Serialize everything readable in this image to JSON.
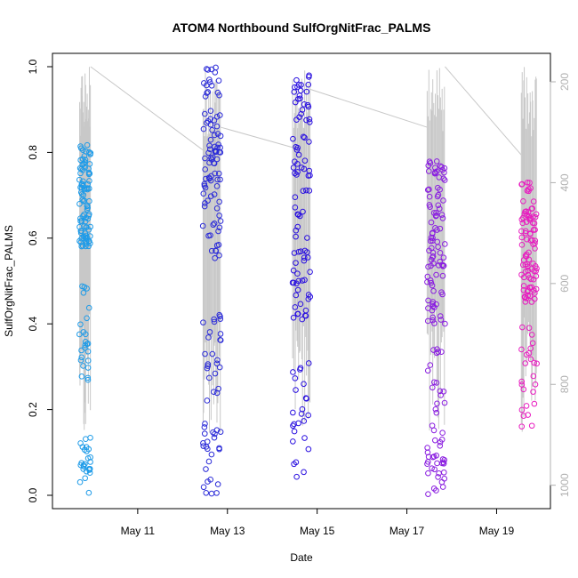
{
  "chart_data": {
    "type": "scatter",
    "title": "ATOM4 Northbound SulfOrgNitFrac_PALMS",
    "xlabel": "Date",
    "ylabel": "SulfOrgNitFrac_PALMS",
    "x_ticks": [
      "May 11",
      "May 13",
      "May 15",
      "May 17",
      "May 19"
    ],
    "x_tick_values": [
      11,
      13,
      15,
      17,
      19
    ],
    "x_range": [
      9.1,
      20.2
    ],
    "y_ticks": [
      "0.0",
      "0.2",
      "0.4",
      "0.6",
      "0.8",
      "1.0"
    ],
    "y_tick_values": [
      0,
      0.2,
      0.4,
      0.6,
      0.8,
      1.0
    ],
    "ylim": [
      0,
      1.0
    ],
    "y2_ticks": [
      "200",
      "400",
      "600",
      "800",
      "1000"
    ],
    "y2_tick_values": [
      200,
      400,
      600,
      800,
      1000
    ],
    "y2lim": [
      1020,
      170
    ],
    "y2_reversed": true,
    "grid": false,
    "series_colors": [
      "#1e9be8",
      "#2b2bd8",
      "#2a10e0",
      "#8a1ee0",
      "#e81cc0"
    ],
    "pressure_color": "#c8c8c8",
    "flights": [
      {
        "x_range": [
          9.7,
          9.95
        ],
        "y_clusters": [
          [
            0.58,
            0.82
          ],
          [
            0.25,
            0.5
          ],
          [
            0.0,
            0.14
          ]
        ]
      },
      {
        "x_range": [
          12.45,
          12.85
        ],
        "y_clusters": [
          [
            0.55,
            1.0
          ],
          [
            0.22,
            0.45
          ],
          [
            0.0,
            0.17
          ]
        ]
      },
      {
        "x_range": [
          14.45,
          14.85
        ],
        "y_clusters": [
          [
            0.4,
            0.98
          ],
          [
            0.04,
            0.33
          ]
        ]
      },
      {
        "x_range": [
          17.45,
          17.85
        ],
        "y_clusters": [
          [
            0.4,
            0.78
          ],
          [
            0.1,
            0.35
          ],
          [
            0.0,
            0.1
          ]
        ]
      },
      {
        "x_range": [
          19.55,
          19.9
        ],
        "y_clusters": [
          [
            0.45,
            0.73
          ],
          [
            0.12,
            0.4
          ]
        ]
      }
    ],
    "pressure_connectors": [
      {
        "x": [
          9.95,
          12.45
        ],
        "p": [
          170,
          335
        ]
      },
      {
        "x": [
          12.85,
          14.45
        ],
        "p": [
          290,
          330
        ]
      },
      {
        "x": [
          14.85,
          17.45
        ],
        "p": [
          215,
          290
        ]
      },
      {
        "x": [
          17.85,
          19.55
        ],
        "p": [
          170,
          345
        ]
      }
    ]
  }
}
